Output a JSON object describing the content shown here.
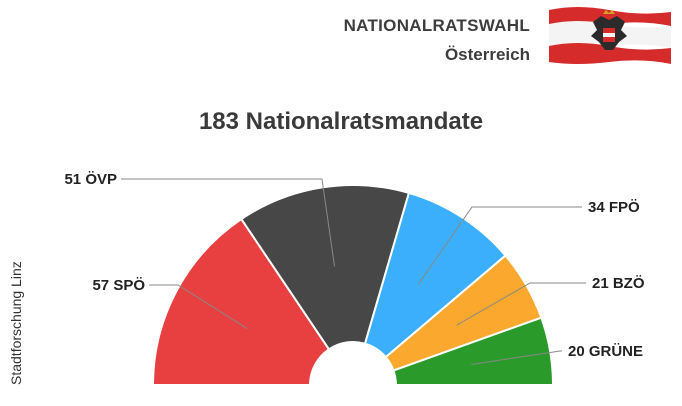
{
  "header": {
    "title": "NATIONALRATSWAHL",
    "subtitle": "Österreich",
    "flag_icon": "austria-flag-icon"
  },
  "source": "Stadtforschung Linz",
  "colors": {
    "SPÖ": "#e84040",
    "ÖVP": "#474747",
    "FPÖ": "#3baefc",
    "BZÖ": "#fba82e",
    "GRÜNE": "#2a9a2a"
  },
  "labels": {
    "SPÖ": "57  SPÖ",
    "ÖVP": "51  ÖVP",
    "FPÖ": "34  FPÖ",
    "BZÖ": "21  BZÖ",
    "GRÜNE": "20  GRÜNE"
  },
  "chart_data": {
    "type": "pie",
    "subtype": "half-donut (parliament seats)",
    "title": "183 Nationalratsmandate",
    "total": 183,
    "categories": [
      "SPÖ",
      "ÖVP",
      "FPÖ",
      "BZÖ",
      "GRÜNE"
    ],
    "values": [
      57,
      51,
      34,
      21,
      20
    ]
  }
}
